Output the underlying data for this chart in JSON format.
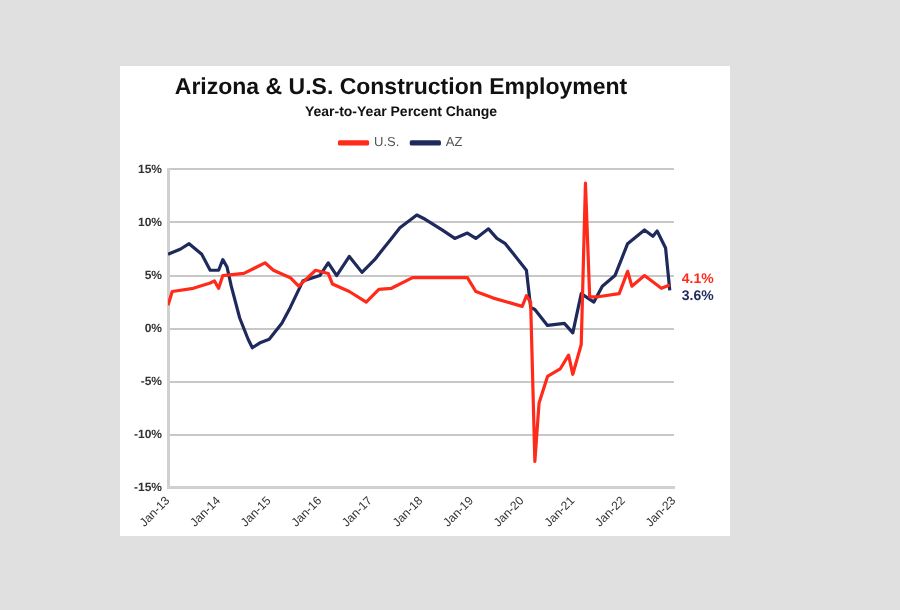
{
  "chart_data": {
    "type": "line",
    "title": "Arizona & U.S. Construction Employment",
    "subtitle": "Year-to-Year Percent Change",
    "xlim": [
      "2013-01",
      "2023-01"
    ],
    "xticks": [
      {
        "value": "2013-01",
        "label": "Jan-13"
      },
      {
        "value": "2014-01",
        "label": "Jan-14"
      },
      {
        "value": "2015-01",
        "label": "Jan-15"
      },
      {
        "value": "2016-01",
        "label": "Jan-16"
      },
      {
        "value": "2017-01",
        "label": "Jan-17"
      },
      {
        "value": "2018-01",
        "label": "Jan-18"
      },
      {
        "value": "2019-01",
        "label": "Jan-19"
      },
      {
        "value": "2020-01",
        "label": "Jan-20"
      },
      {
        "value": "2021-01",
        "label": "Jan-21"
      },
      {
        "value": "2022-01",
        "label": "Jan-22"
      },
      {
        "value": "2023-01",
        "label": "Jan-23"
      }
    ],
    "ylim": [
      -15,
      15
    ],
    "yticks": [
      {
        "value": -15,
        "label": "-15%"
      },
      {
        "value": -10,
        "label": "-10%"
      },
      {
        "value": -5,
        "label": "-5%"
      },
      {
        "value": 0,
        "label": "0%"
      },
      {
        "value": 5,
        "label": "5%"
      },
      {
        "value": 10,
        "label": "10%"
      },
      {
        "value": 15,
        "label": "15%"
      }
    ],
    "grid": "y",
    "legend": "top",
    "marker": "none",
    "series": [
      {
        "name": "U.S.",
        "color": "#ff2a1a",
        "x": [
          "2013-01",
          "2013-02",
          "2013-07",
          "2013-11",
          "2013-12",
          "2014-01",
          "2014-02",
          "2014-07",
          "2014-12",
          "2015-02",
          "2015-06",
          "2015-08",
          "2015-12",
          "2016-03",
          "2016-04",
          "2016-08",
          "2016-12",
          "2017-03",
          "2017-06",
          "2017-11",
          "2018-04",
          "2018-12",
          "2019-02",
          "2019-06",
          "2020-01",
          "2020-02",
          "2020-03",
          "2020-04",
          "2020-05",
          "2020-07",
          "2020-10",
          "2020-12",
          "2021-01",
          "2021-03",
          "2021-04",
          "2021-05",
          "2021-07",
          "2021-12",
          "2022-02",
          "2022-03",
          "2022-06",
          "2022-10",
          "2022-12"
        ],
        "values": [
          2.2,
          3.5,
          3.8,
          4.3,
          4.5,
          3.8,
          5.0,
          5.2,
          6.2,
          5.5,
          4.8,
          4.0,
          5.5,
          5.2,
          4.2,
          3.5,
          2.5,
          3.7,
          3.8,
          4.8,
          4.8,
          4.8,
          3.5,
          2.9,
          2.1,
          3.1,
          2.5,
          -12.5,
          -7,
          -4.5,
          -3.8,
          -2.5,
          -4.3,
          -1.5,
          13.7,
          3,
          3,
          3.3,
          5.4,
          4,
          5,
          3.8,
          4.1
        ]
      },
      {
        "name": "AZ",
        "color": "#1f2a5c",
        "x": [
          "2013-01",
          "2013-04",
          "2013-06",
          "2013-09",
          "2013-11",
          "2014-01",
          "2014-02",
          "2014-03",
          "2014-04",
          "2014-06",
          "2014-08",
          "2014-09",
          "2014-11",
          "2015-01",
          "2015-04",
          "2015-06",
          "2015-09",
          "2016-01",
          "2016-03",
          "2016-05",
          "2016-08",
          "2016-11",
          "2017-02",
          "2017-04",
          "2017-06",
          "2017-08",
          "2017-12",
          "2018-02",
          "2018-06",
          "2018-09",
          "2018-12",
          "2019-02",
          "2019-05",
          "2019-07",
          "2019-09",
          "2019-11",
          "2020-02",
          "2020-03",
          "2020-04",
          "2020-07",
          "2020-11",
          "2021-01",
          "2021-03",
          "2021-06",
          "2021-08",
          "2021-11",
          "2022-02",
          "2022-06",
          "2022-08",
          "2022-09",
          "2022-11",
          "2022-12"
        ],
        "values": [
          7.0,
          7.5,
          8.0,
          7.0,
          5.5,
          5.5,
          6.5,
          5.8,
          4.0,
          1.0,
          -1.0,
          -1.8,
          -1.3,
          -1.0,
          0.5,
          2.0,
          4.5,
          5.0,
          6.2,
          5.0,
          6.8,
          5.3,
          6.5,
          7.5,
          8.5,
          9.5,
          10.7,
          10.3,
          9.3,
          8.5,
          9.0,
          8.5,
          9.4,
          8.5,
          8.0,
          7.0,
          5.5,
          2.0,
          1.8,
          0.3,
          0.5,
          -0.4,
          3.3,
          2.5,
          4.0,
          5.0,
          8.0,
          9.3,
          8.7,
          9.2,
          7.6,
          3.6
        ]
      }
    ],
    "annotations": [
      {
        "text": "4.1%",
        "x": "2022-12",
        "y": 4.1
      },
      {
        "text": "3.6%",
        "x": "2022-12",
        "y": 3.6
      }
    ]
  }
}
